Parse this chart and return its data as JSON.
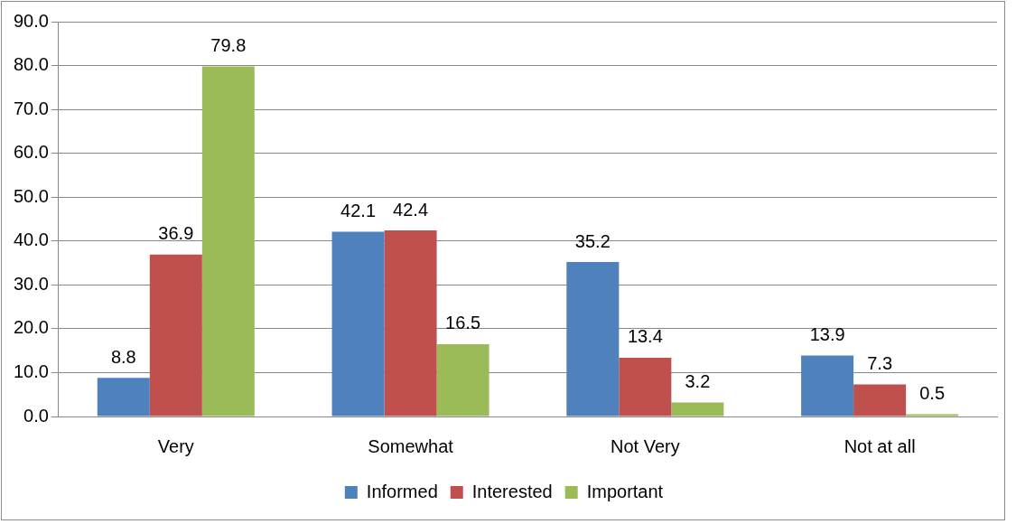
{
  "chart_data": {
    "type": "bar",
    "categories": [
      "Very",
      "Somewhat",
      "Not Very",
      "Not at all"
    ],
    "series": [
      {
        "name": "Informed",
        "color": "#4f81bd",
        "values": [
          8.8,
          42.1,
          35.2,
          13.9
        ]
      },
      {
        "name": "Interested",
        "color": "#c0504d",
        "values": [
          36.9,
          42.4,
          13.4,
          7.3
        ]
      },
      {
        "name": "Important",
        "color": "#9bbb59",
        "values": [
          79.8,
          16.5,
          3.2,
          0.5
        ]
      }
    ],
    "ylim": [
      0,
      90
    ],
    "yticks": [
      {
        "value": 0,
        "label": "0.0"
      },
      {
        "value": 10,
        "label": "10.0"
      },
      {
        "value": 20,
        "label": "20.0"
      },
      {
        "value": 30,
        "label": "30.0"
      },
      {
        "value": 40,
        "label": "40.0"
      },
      {
        "value": 50,
        "label": "50.0"
      },
      {
        "value": 60,
        "label": "60.0"
      },
      {
        "value": 70,
        "label": "70.0"
      },
      {
        "value": 80,
        "label": "80.0"
      },
      {
        "value": 90,
        "label": "90.0"
      }
    ],
    "grid": "y",
    "legend": "bottom",
    "data_labels": true
  }
}
